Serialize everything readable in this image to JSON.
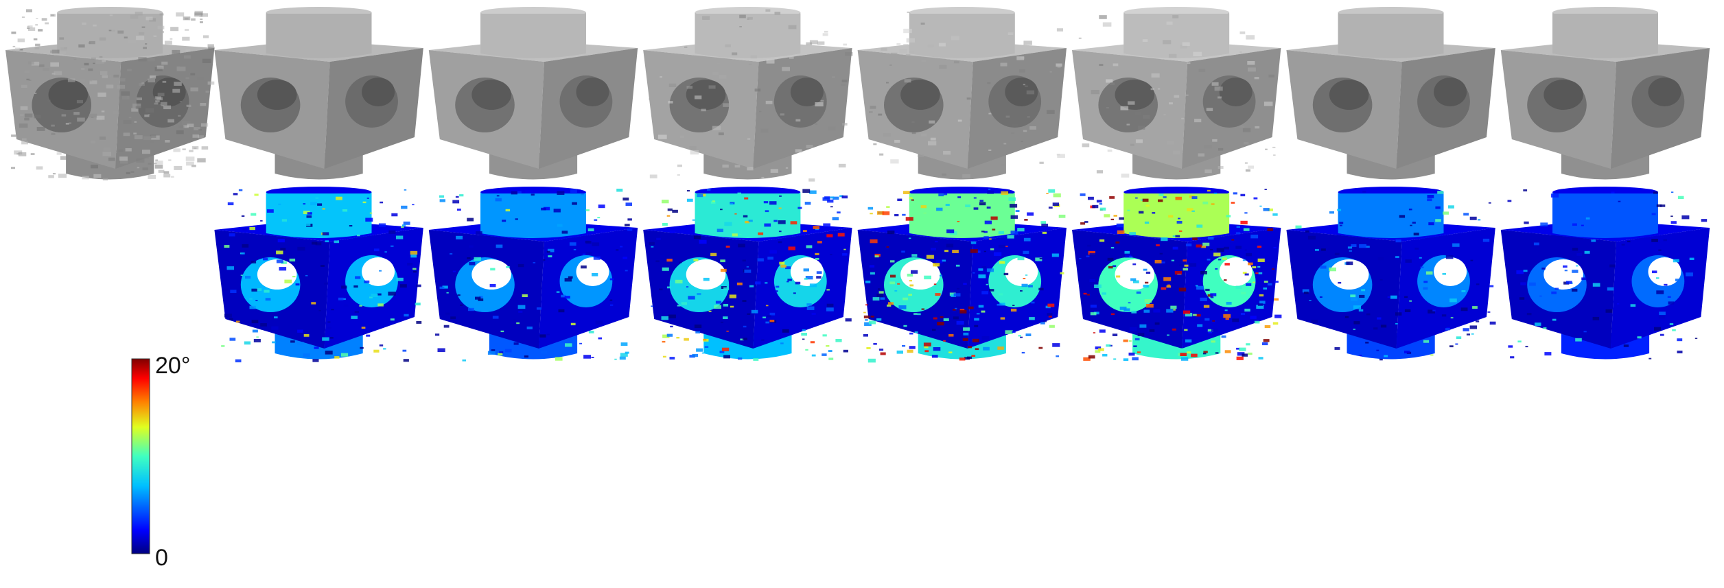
{
  "colorbar": {
    "max_label": "20°",
    "min_label": "0",
    "colors": [
      "#00007f",
      "#0000ff",
      "#0080ff",
      "#00ffff",
      "#7fff7f",
      "#ffff00",
      "#ff8000",
      "#ff0000",
      "#7f0000"
    ]
  },
  "rows": [
    {
      "kind": "shaded",
      "panels": [
        {
          "kind": "noisy",
          "color": "#9b9b9b"
        },
        {
          "kind": "smooth",
          "color": "#9d9d9d"
        },
        {
          "kind": "smooth",
          "color": "#a3a3a3"
        },
        {
          "kind": "faceted",
          "color": "#a6a6a6"
        },
        {
          "kind": "bumpy",
          "color": "#a4a4a4"
        },
        {
          "kind": "bumpy",
          "color": "#a8a8a8"
        },
        {
          "kind": "smooth",
          "color": "#9f9f9f"
        },
        {
          "kind": "smooth",
          "color": "#a0a0a0"
        }
      ]
    },
    {
      "kind": "error",
      "panels": [
        {
          "kind": "colorbar"
        },
        {
          "kind": "error",
          "level": 0.35
        },
        {
          "kind": "error",
          "level": 0.25
        },
        {
          "kind": "error",
          "level": 0.5
        },
        {
          "kind": "error",
          "level": 0.65
        },
        {
          "kind": "error",
          "level": 0.75
        },
        {
          "kind": "error",
          "level": 0.2
        },
        {
          "kind": "error",
          "level": 0.12
        }
      ]
    }
  ]
}
